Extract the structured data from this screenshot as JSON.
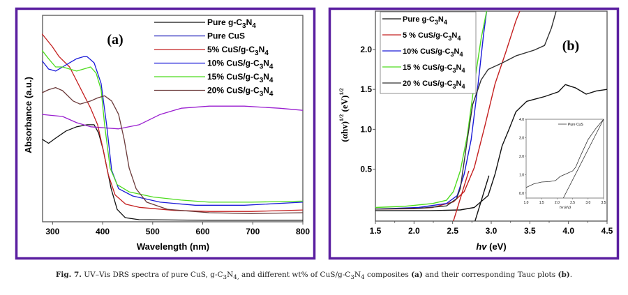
{
  "chart_data": [
    {
      "panel_label": "(a)",
      "type": "line",
      "xlabel": "Wavelength (nm)",
      "ylabel": "Absorbance (a.u.)",
      "xlim": [
        280,
        800
      ],
      "ylim": [
        0,
        1
      ],
      "xticks": [
        300,
        400,
        500,
        600,
        700,
        800
      ],
      "xtick_labels": [
        "300",
        "400",
        "500",
        "600",
        "700",
        "800"
      ],
      "yticks": [],
      "grid": false,
      "legend_position": "top-right",
      "series": [
        {
          "name": "Pure g-C3N4",
          "label_main": "Pure g-C",
          "sub1": "3",
          "mid": "N",
          "sub2": "4",
          "tail": "",
          "legend_color": "#111111",
          "color": "#111111",
          "x": [
            279,
            292,
            306,
            327,
            348,
            369,
            383,
            392,
            401,
            417,
            429,
            445,
            473,
            613,
            800
          ],
          "y": [
            0.4,
            0.38,
            0.405,
            0.44,
            0.46,
            0.47,
            0.47,
            0.43,
            0.35,
            0.16,
            0.06,
            0.02,
            0.01,
            0.007,
            0.007
          ]
        },
        {
          "name": "Pure CuS",
          "label_main": "Pure CuS",
          "sub1": "",
          "mid": "",
          "sub2": "",
          "tail": "",
          "legend_color": "#1a1ab8",
          "color": "#9a1fd0",
          "x": [
            279,
            320,
            348,
            376,
            404,
            432,
            473,
            515,
            557,
            613,
            683,
            753,
            800
          ],
          "y": [
            0.52,
            0.51,
            0.48,
            0.46,
            0.455,
            0.45,
            0.47,
            0.52,
            0.55,
            0.56,
            0.56,
            0.55,
            0.54
          ]
        },
        {
          "name": "5% CuS/g-C3N4",
          "label_main": "5% CuS/g-C",
          "sub1": "3",
          "mid": "N",
          "sub2": "4",
          "tail": "",
          "legend_color": "#c42020",
          "color": "#c42020",
          "x": [
            279,
            299,
            313,
            334,
            355,
            376,
            390,
            401,
            411,
            425,
            446,
            473,
            543,
            613,
            697,
            800
          ],
          "y": [
            0.91,
            0.85,
            0.8,
            0.75,
            0.65,
            0.55,
            0.47,
            0.35,
            0.23,
            0.13,
            0.085,
            0.07,
            0.055,
            0.05,
            0.05,
            0.057
          ]
        },
        {
          "name": "10% CuS/g-C3N4",
          "label_main": "10% CuS/g-C",
          "sub1": "3",
          "mid": "N",
          "sub2": "4",
          "tail": "",
          "legend_color": "#1a1ad8",
          "color": "#1a1ad8",
          "x": [
            279,
            292,
            306,
            320,
            334,
            348,
            362,
            369,
            383,
            397,
            408,
            418,
            432,
            460,
            515,
            585,
            683,
            800
          ],
          "y": [
            0.78,
            0.74,
            0.73,
            0.75,
            0.77,
            0.79,
            0.8,
            0.8,
            0.77,
            0.67,
            0.47,
            0.25,
            0.16,
            0.125,
            0.095,
            0.08,
            0.08,
            0.095
          ]
        },
        {
          "name": "15% CuS/g-C3N4",
          "label_main": "15% CuS/g-C",
          "sub1": "3",
          "mid": "N",
          "sub2": "4",
          "tail": "",
          "legend_color": "#4ddc1e",
          "color": "#4ddc1e",
          "x": [
            279,
            292,
            306,
            320,
            334,
            348,
            362,
            376,
            387,
            397,
            404,
            415,
            429,
            453,
            501,
            557,
            613,
            697,
            800
          ],
          "y": [
            0.83,
            0.79,
            0.75,
            0.75,
            0.74,
            0.73,
            0.74,
            0.75,
            0.72,
            0.64,
            0.47,
            0.26,
            0.18,
            0.145,
            0.12,
            0.105,
            0.095,
            0.095,
            0.1
          ]
        },
        {
          "name": "20% CuS/g-C3N4",
          "label_main": "20% CuS/g-C",
          "sub1": "3",
          "mid": "N",
          "sub2": "4",
          "tail": "",
          "legend_color": "#6b3a3a",
          "color": "#6b3a3a",
          "x": [
            279,
            292,
            306,
            320,
            341,
            355,
            376,
            390,
            404,
            418,
            432,
            443,
            453,
            467,
            488,
            530,
            613,
            697,
            800
          ],
          "y": [
            0.625,
            0.64,
            0.65,
            0.635,
            0.585,
            0.57,
            0.585,
            0.6,
            0.61,
            0.585,
            0.52,
            0.4,
            0.26,
            0.16,
            0.095,
            0.06,
            0.044,
            0.04,
            0.044
          ]
        }
      ]
    },
    {
      "panel_label": "(b)",
      "type": "line",
      "xlabel_italic": "hv",
      "xlabel_rest": " (eV)",
      "ylabel": "(αhv)",
      "ylabel_sup1": "1/2",
      "ylabel_mid": " (eV)",
      "ylabel_sup2": "1/2",
      "xlim": [
        1.5,
        4.5
      ],
      "ylim": [
        -0.15,
        2.48
      ],
      "xticks": [
        1.5,
        2.0,
        2.5,
        3.0,
        3.5,
        4.0,
        4.5
      ],
      "xtick_labels": [
        "1.5",
        "2.0",
        "2.5",
        "3.0",
        "3.5",
        "4.0",
        "4.5"
      ],
      "yticks": [
        0.5,
        1.0,
        1.5,
        2.0
      ],
      "ytick_labels": [
        "0.5",
        "1.0",
        "1.5",
        "2.0"
      ],
      "grid": false,
      "legend_position": "top-left",
      "series": [
        {
          "name": "Pure g-C3N4",
          "label_main": "Pure g-C",
          "sub1": "3",
          "mid": "N",
          "sub2": "4",
          "color": "#111111",
          "x": [
            1.5,
            2.2,
            2.6,
            2.78,
            2.96,
            3.05,
            3.14,
            3.23,
            3.32,
            3.46,
            3.69,
            3.87,
            3.96,
            4.09,
            4.23,
            4.36,
            4.5
          ],
          "y": [
            -0.02,
            -0.02,
            -0.01,
            0.02,
            0.17,
            0.44,
            0.79,
            1.0,
            1.22,
            1.35,
            1.41,
            1.47,
            1.56,
            1.52,
            1.44,
            1.48,
            1.5
          ]
        },
        {
          "name": "5 % CuS/g-C3N4",
          "label_main": "5 % CuS/g-C",
          "sub1": "3",
          "mid": "N",
          "sub2": "4",
          "color": "#c42020",
          "x": [
            1.5,
            2.0,
            2.24,
            2.51,
            2.65,
            2.78,
            2.92,
            3.05,
            3.19,
            3.32,
            3.37
          ],
          "y": [
            0.0,
            0.005,
            0.02,
            0.09,
            0.22,
            0.52,
            1.05,
            1.57,
            1.97,
            2.36,
            2.48
          ]
        },
        {
          "name": "10% CuS/g-C3N4",
          "label_main": "10% CuS/g-C",
          "sub1": "3",
          "mid": "N",
          "sub2": "4",
          "color": "#1a1ad8",
          "x": [
            1.5,
            2.06,
            2.42,
            2.56,
            2.65,
            2.74,
            2.83,
            2.9,
            2.94
          ],
          "y": [
            0.0,
            0.02,
            0.07,
            0.17,
            0.44,
            0.87,
            1.57,
            2.18,
            2.48
          ]
        },
        {
          "name": "15 % CuS/g-C3N4",
          "label_main": "15 % CuS/g-C",
          "sub1": "3",
          "mid": "N",
          "sub2": "4",
          "color": "#4ddc1e",
          "x": [
            1.5,
            1.88,
            2.24,
            2.42,
            2.51,
            2.6,
            2.69,
            2.78,
            2.87,
            2.94
          ],
          "y": [
            0.02,
            0.035,
            0.07,
            0.11,
            0.22,
            0.48,
            0.92,
            1.57,
            2.14,
            2.48
          ]
        },
        {
          "name": "20 % CuS/g-C3N4",
          "label_main": "20 % CuS/g-C",
          "sub1": "3",
          "mid": "N",
          "sub2": "4",
          "color": "#333333",
          "x": [
            1.5,
            2.06,
            2.42,
            2.55,
            2.6,
            2.69,
            2.76,
            2.87,
            2.96,
            3.14,
            3.32,
            3.55,
            3.69,
            3.78,
            3.84
          ],
          "y": [
            0.0,
            0.01,
            0.04,
            0.13,
            0.26,
            0.87,
            1.31,
            1.62,
            1.75,
            1.83,
            1.92,
            1.99,
            2.05,
            2.27,
            2.48
          ]
        }
      ],
      "tangent_lines": [
        {
          "name": "tangent-5pct",
          "color": "#c42020",
          "x": [
            2.51,
            2.71
          ],
          "y": [
            -0.15,
            0.48
          ]
        },
        {
          "name": "tangent-pure-g-c3n4",
          "color": "#111111",
          "x": [
            2.79,
            2.97
          ],
          "y": [
            -0.15,
            0.42
          ]
        }
      ],
      "inset": {
        "type": "line",
        "xlabel": "hv (eV)",
        "xlim": [
          1.0,
          3.5
        ],
        "ylim": [
          -0.27,
          4.0
        ],
        "xticks": [
          1.0,
          1.5,
          2.0,
          2.5,
          3.0,
          3.5
        ],
        "xtick_labels": [
          "1.0",
          "1.5",
          "2.0",
          "2.5",
          "3.0",
          "3.5"
        ],
        "yticks": [
          0.0,
          1.0,
          2.0,
          3.0,
          4.0
        ],
        "ytick_labels": [
          "0.0",
          "1.0",
          "2.0",
          "3.0",
          "4.0"
        ],
        "legend": "Pure CuS",
        "color": "#333333",
        "x": [
          1.0,
          1.25,
          1.5,
          1.75,
          1.95,
          2.1,
          2.3,
          2.5,
          2.6,
          2.75,
          3.0,
          3.25,
          3.5
        ],
        "y": [
          0.3,
          0.5,
          0.6,
          0.62,
          0.68,
          0.9,
          1.05,
          1.2,
          1.4,
          2.0,
          2.9,
          3.5,
          4.0
        ],
        "tangent": {
          "x": [
            2.2,
            3.5
          ],
          "y": [
            -0.27,
            4.0
          ]
        }
      }
    }
  ],
  "frame_color": "#5a1fa0",
  "caption": {
    "fig_label": "Fig. 7.",
    "t1": " UV–Vis DRS spectra of pure CuS, g-C",
    "s1": "3",
    "t2": "N",
    "s2": "4,",
    "t3": " and different wt% of CuS/g-C",
    "s3": "3",
    "t4": "N",
    "s4": "4",
    "t5": " composites ",
    "b1": "(a)",
    "t6": " and their corresponding Tauc plots ",
    "b2": "(b)",
    "t7": "."
  }
}
